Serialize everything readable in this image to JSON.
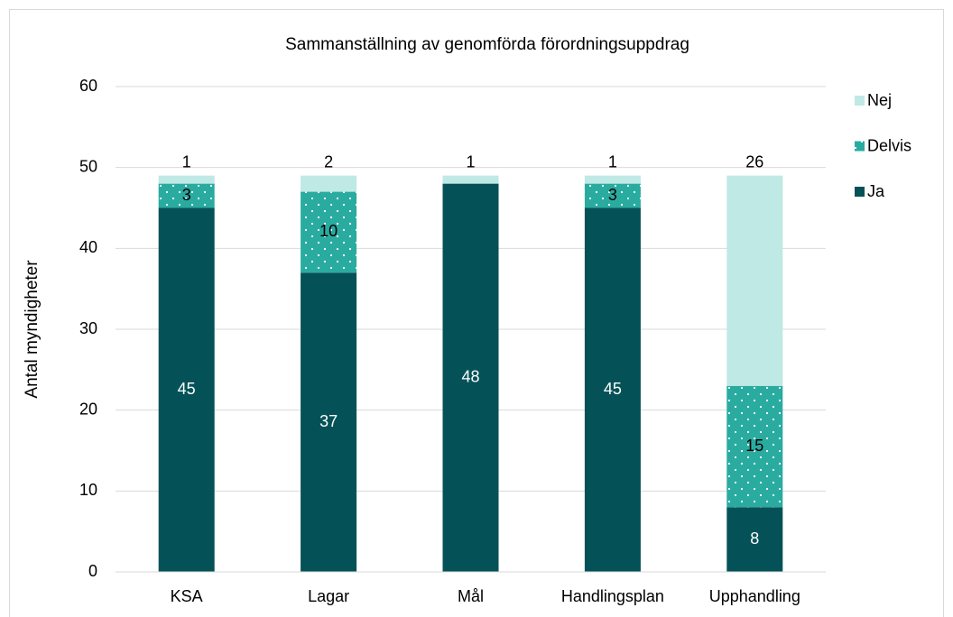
{
  "chart_data": {
    "type": "stacked_bar",
    "title": "Sammanställning av genomförda förordningsuppdrag",
    "y_label": "Antal myndigheter",
    "categories": [
      "KSA",
      "Lagar",
      "Mål",
      "Handlingsplan",
      "Upphandling"
    ],
    "series": [
      {
        "name": "Ja",
        "color": "#045257",
        "values": [
          45,
          37,
          48,
          45,
          8
        ]
      },
      {
        "name": "Delvis",
        "color": "#2aaba0",
        "values": [
          3,
          10,
          0,
          3,
          15
        ]
      },
      {
        "name": "Nej",
        "color": "#bfe9e5",
        "values": [
          1,
          2,
          1,
          1,
          26
        ]
      }
    ],
    "ylim": [
      0,
      60
    ],
    "yticks": [
      0,
      10,
      20,
      30,
      40,
      50,
      60
    ],
    "grid": true,
    "legend": "right"
  }
}
